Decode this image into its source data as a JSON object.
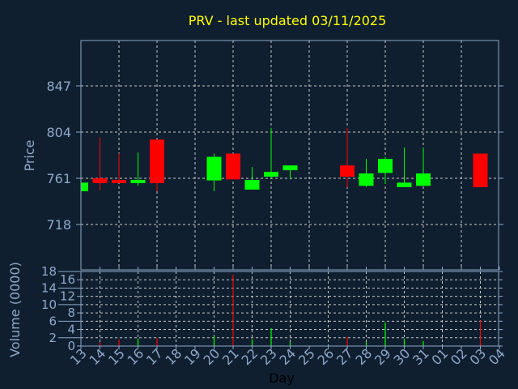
{
  "chart_data": [
    {
      "type": "candlestick",
      "title": "PRV - last updated 03/11/2025",
      "ylabel": "Price",
      "ylim": [
        694,
        882
      ],
      "yticks": [
        "847",
        "804",
        "761",
        "718"
      ],
      "ytick_values": [
        847,
        804,
        761,
        718
      ],
      "grid": true,
      "colors": {
        "up": "#00ff00",
        "down": "#ff0000",
        "title": "#ffff00",
        "axis": "#8fa8c8",
        "grid": "#c8c8c8",
        "background": "#0f1f30"
      },
      "x_days": [
        "13",
        "14",
        "15",
        "16",
        "17",
        "18",
        "19",
        "20",
        "21",
        "22",
        "23",
        "24",
        "25",
        "26",
        "27",
        "28",
        "29",
        "30",
        "31",
        "01",
        "02",
        "03",
        "04"
      ],
      "candles": [
        {
          "day": "13",
          "open": 749,
          "high": 757,
          "low": 749,
          "close": 757
        },
        {
          "day": "14",
          "open": 761,
          "high": 799,
          "low": 750,
          "close": 756.5
        },
        {
          "day": "15",
          "open": 759.5,
          "high": 784,
          "low": 756.5,
          "close": 756.5
        },
        {
          "day": "16",
          "open": 756.5,
          "high": 785,
          "low": 754,
          "close": 759.5
        },
        {
          "day": "17",
          "open": 797,
          "high": 797,
          "low": 749,
          "close": 756.5
        },
        {
          "day": "20",
          "open": 759,
          "high": 784,
          "low": 749,
          "close": 781
        },
        {
          "day": "21",
          "open": 784,
          "high": 784,
          "low": 760,
          "close": 760
        },
        {
          "day": "22",
          "open": 750.5,
          "high": 771.5,
          "low": 750.5,
          "close": 759.5
        },
        {
          "day": "23",
          "open": 762.5,
          "high": 808,
          "low": 761,
          "close": 767
        },
        {
          "day": "24",
          "open": 768.5,
          "high": 773,
          "low": 760,
          "close": 773
        },
        {
          "day": "27",
          "open": 773,
          "high": 808,
          "low": 752.7,
          "close": 762.5
        },
        {
          "day": "28",
          "open": 754,
          "high": 779,
          "low": 753,
          "close": 765.5
        },
        {
          "day": "29",
          "open": 766,
          "high": 781,
          "low": 755.7,
          "close": 779
        },
        {
          "day": "30",
          "open": 752.7,
          "high": 789.6,
          "low": 752.7,
          "close": 757
        },
        {
          "day": "31",
          "open": 754,
          "high": 789.6,
          "low": 754,
          "close": 765.5
        },
        {
          "day": "03",
          "open": 784,
          "high": 784,
          "low": 752.7,
          "close": 752.7
        }
      ]
    },
    {
      "type": "bar",
      "xlabel": "Day",
      "ylabel": "Volume (0000)",
      "ylim": [
        0,
        18
      ],
      "yticks": [
        "0",
        "2",
        "4",
        "6",
        "8",
        "10",
        "12",
        "14",
        "16",
        "18"
      ],
      "grid": true,
      "volumes": [
        {
          "day": "14",
          "value": 1.0,
          "dir": "down"
        },
        {
          "day": "15",
          "value": 1.6,
          "dir": "down"
        },
        {
          "day": "16",
          "value": 1.8,
          "dir": "up"
        },
        {
          "day": "17",
          "value": 1.9,
          "dir": "down"
        },
        {
          "day": "20",
          "value": 2.5,
          "dir": "up"
        },
        {
          "day": "21",
          "value": 17.2,
          "dir": "down"
        },
        {
          "day": "22",
          "value": 1.6,
          "dir": "up"
        },
        {
          "day": "23",
          "value": 4.3,
          "dir": "up"
        },
        {
          "day": "24",
          "value": 1.0,
          "dir": "up"
        },
        {
          "day": "27",
          "value": 2.2,
          "dir": "down"
        },
        {
          "day": "28",
          "value": 1.0,
          "dir": "up"
        },
        {
          "day": "29",
          "value": 5.7,
          "dir": "up"
        },
        {
          "day": "30",
          "value": 1.8,
          "dir": "up"
        },
        {
          "day": "31",
          "value": 1.2,
          "dir": "up"
        },
        {
          "day": "03",
          "value": 6.2,
          "dir": "down"
        }
      ]
    }
  ]
}
